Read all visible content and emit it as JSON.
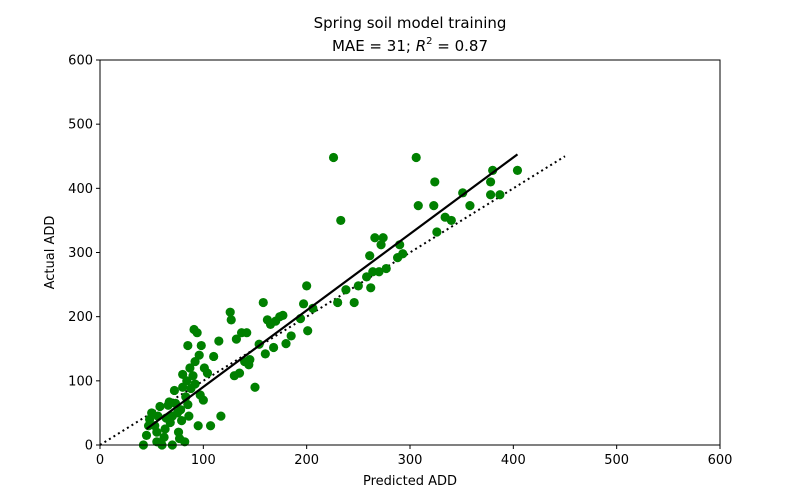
{
  "chart_data": {
    "type": "scatter",
    "title_line1": "Spring soil model training",
    "title_line2_prefix": "MAE = 31; ",
    "title_line2_var": "R",
    "title_line2_exp": "2",
    "title_line2_suffix": " = 0.87",
    "xlabel": "Predicted ADD",
    "ylabel": "Actual ADD",
    "xlim": [
      0,
      600
    ],
    "ylim": [
      0,
      600
    ],
    "xticks": [
      0,
      100,
      200,
      300,
      400,
      500,
      600
    ],
    "yticks": [
      0,
      100,
      200,
      300,
      400,
      500,
      600
    ],
    "grid": false,
    "point_color": "#008000",
    "fit_line": {
      "x": [
        45,
        404
      ],
      "y": [
        25,
        453
      ],
      "color": "#000000",
      "style": "solid"
    },
    "identity_line": {
      "x": [
        0,
        450
      ],
      "y": [
        0,
        450
      ],
      "color": "#000000",
      "style": "dotted"
    },
    "points": [
      [
        42,
        0
      ],
      [
        45,
        15
      ],
      [
        47,
        30
      ],
      [
        48,
        40
      ],
      [
        50,
        50
      ],
      [
        53,
        30
      ],
      [
        55,
        5
      ],
      [
        55,
        20
      ],
      [
        56,
        45
      ],
      [
        58,
        60
      ],
      [
        60,
        0
      ],
      [
        62,
        12
      ],
      [
        63,
        25
      ],
      [
        64,
        42
      ],
      [
        66,
        62
      ],
      [
        67,
        67
      ],
      [
        68,
        35
      ],
      [
        70,
        45
      ],
      [
        70,
        0
      ],
      [
        72,
        85
      ],
      [
        73,
        65
      ],
      [
        75,
        50
      ],
      [
        76,
        20
      ],
      [
        77,
        10
      ],
      [
        78,
        55
      ],
      [
        79,
        38
      ],
      [
        80,
        90
      ],
      [
        80,
        110
      ],
      [
        82,
        5
      ],
      [
        83,
        75
      ],
      [
        84,
        100
      ],
      [
        85,
        63
      ],
      [
        85,
        155
      ],
      [
        86,
        45
      ],
      [
        87,
        120
      ],
      [
        88,
        88
      ],
      [
        90,
        108
      ],
      [
        91,
        180
      ],
      [
        92,
        95
      ],
      [
        92,
        130
      ],
      [
        94,
        175
      ],
      [
        95,
        30
      ],
      [
        96,
        140
      ],
      [
        97,
        78
      ],
      [
        98,
        155
      ],
      [
        100,
        70
      ],
      [
        101,
        120
      ],
      [
        104,
        112
      ],
      [
        107,
        30
      ],
      [
        110,
        138
      ],
      [
        115,
        162
      ],
      [
        117,
        45
      ],
      [
        126,
        207
      ],
      [
        127,
        195
      ],
      [
        130,
        108
      ],
      [
        132,
        165
      ],
      [
        135,
        112
      ],
      [
        137,
        175
      ],
      [
        140,
        130
      ],
      [
        142,
        175
      ],
      [
        144,
        125
      ],
      [
        145,
        133
      ],
      [
        150,
        90
      ],
      [
        154,
        157
      ],
      [
        158,
        222
      ],
      [
        160,
        142
      ],
      [
        162,
        195
      ],
      [
        165,
        188
      ],
      [
        168,
        152
      ],
      [
        170,
        193
      ],
      [
        174,
        200
      ],
      [
        177,
        202
      ],
      [
        180,
        158
      ],
      [
        185,
        170
      ],
      [
        194,
        197
      ],
      [
        197,
        220
      ],
      [
        200,
        248
      ],
      [
        201,
        178
      ],
      [
        206,
        213
      ],
      [
        226,
        448
      ],
      [
        230,
        222
      ],
      [
        233,
        350
      ],
      [
        238,
        242
      ],
      [
        246,
        222
      ],
      [
        250,
        248
      ],
      [
        258,
        262
      ],
      [
        261,
        295
      ],
      [
        262,
        245
      ],
      [
        264,
        270
      ],
      [
        266,
        323
      ],
      [
        270,
        270
      ],
      [
        272,
        312
      ],
      [
        274,
        323
      ],
      [
        277,
        275
      ],
      [
        288,
        292
      ],
      [
        290,
        312
      ],
      [
        293,
        298
      ],
      [
        306,
        448
      ],
      [
        308,
        373
      ],
      [
        323,
        373
      ],
      [
        324,
        410
      ],
      [
        326,
        332
      ],
      [
        334,
        355
      ],
      [
        340,
        350
      ],
      [
        351,
        393
      ],
      [
        358,
        373
      ],
      [
        378,
        410
      ],
      [
        378,
        390
      ],
      [
        380,
        428
      ],
      [
        387,
        390
      ],
      [
        404,
        428
      ]
    ]
  }
}
